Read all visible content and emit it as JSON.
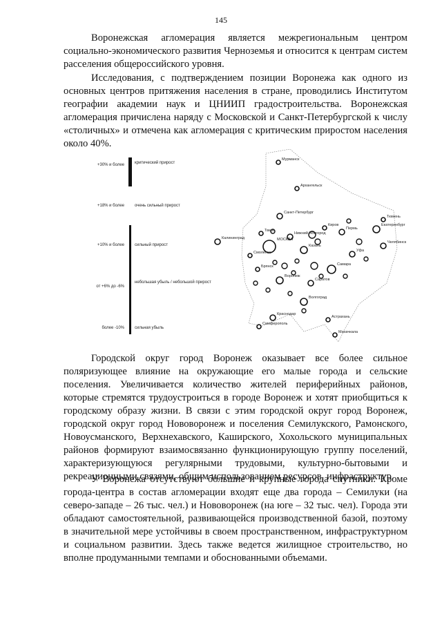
{
  "page_number": "145",
  "paragraphs": [
    "Воронежская агломерация является межрегиональным центром социально-экономического развития Черноземья и относится к центрам систем расселения общероссийского уровня.",
    "Исследования, с подтверждением позиции Воронежа как одного из основных центров притяжения населения в стране, проводились Институтом географии академии наук и ЦНИИП градостроительства. Воронежская агломерация причислена наряду с Московской и Санкт-Петербургской к числу «столичных» и отмечена как агломерация с критическим приростом населения около 40%.",
    "Городской округ город Воронеж оказывает все более сильное поляризующее влияние на окружающие его малые города и сельские поселения. Увеличивается количество жителей периферийных районов, которые стремятся трудоустроиться в городе Воронеж и хотят приобщиться к городскому образу жизни. В связи с этим городской округ город Воронеж, городской округ город Нововоронеж и поселения Семилукского, Рамонского, Новоусманского, Верхнехавского, Каширского, Хохольского муниципальных районов формируют взаимосвязанно функционирующую группу поселений, характеризующуюся регулярными трудовыми, культурно-бытовыми и рекреационными связями, общим использованием ресурсов, инфраструктур.",
    "У Воронежа отсутствуют большие и крупные города спутники. Кроме города-центра в состав агломерации входят еще два города – Семилуки (на северо-западе – 26 тыс. чел.) и Нововоронеж (на юге – 32 тыс. чел). Города эти обладают самостоятельной, развивающейся производственной базой, поэтому в значительной мере устойчивы в своем пространственном, инфраструктурном и социальном развитии. Здесь также ведется жилищное строительство, но вполне продуманными темпами и обоснованными объемами."
  ],
  "figure": {
    "legend": [
      {
        "range": "+30% и более",
        "label": "критический прирост"
      },
      {
        "range": "+18% и более",
        "label": "очень сильный прирост"
      },
      {
        "range": "+10% и более",
        "label": "сильный прирост"
      },
      {
        "range": "от +6% до -6%",
        "label": "небольшая убыль / небольшой прирост"
      },
      {
        "range": "более -10%",
        "label": "сильная убыль"
      }
    ],
    "cities": [
      "Мурманск",
      "Архангельск",
      "Санкт-Петербург",
      "Калининград",
      "Тверь",
      "МОСКВА",
      "Нижний Новгород",
      "Киров",
      "Пермь",
      "Екатеринбург",
      "Тюмень",
      "Смоленск",
      "Казань",
      "Уфа",
      "Челябинск",
      "Брянск",
      "Самара",
      "Воронеж",
      "Саратов",
      "Волгоград",
      "Краснодар",
      "Астрахань",
      "Симферополь",
      "Махачкала"
    ]
  }
}
